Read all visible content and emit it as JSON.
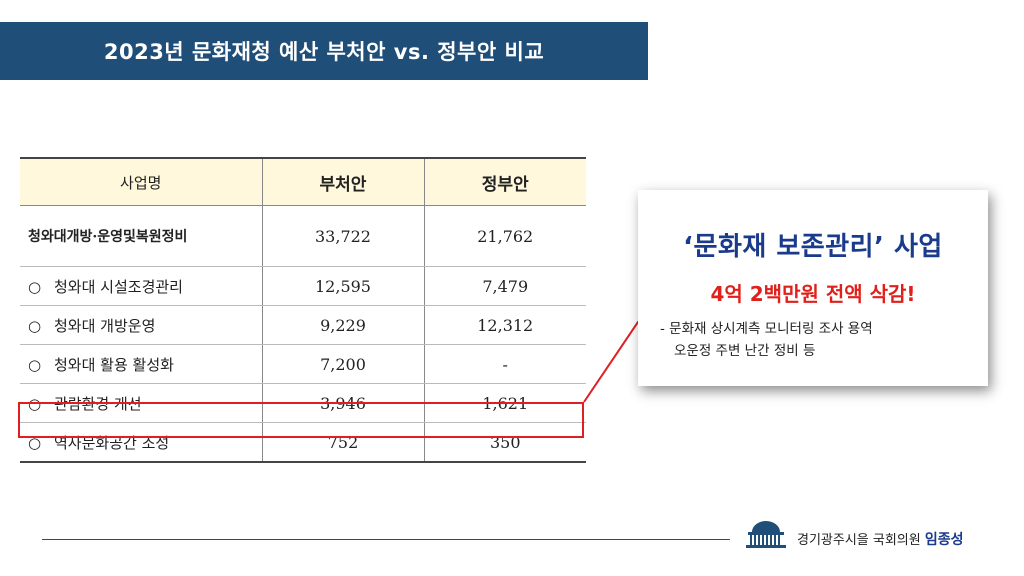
{
  "title": "2023년 문화재청 예산 부처안 vs. 정부안 비교",
  "table": {
    "headers": [
      "사업명",
      "부처안",
      "정부안"
    ],
    "rows": [
      {
        "bullet": "",
        "name": "청와대개방·운영및복원정비",
        "ministry": "33,722",
        "government": "21,762"
      },
      {
        "bullet": "○",
        "name": "청와대 시설조경관리",
        "ministry": "12,595",
        "government": "7,479"
      },
      {
        "bullet": "○",
        "name": "청와대 개방운영",
        "ministry": "9,229",
        "government": "12,312"
      },
      {
        "bullet": "○",
        "name": "청와대 활용 활성화",
        "ministry": "7,200",
        "government": "-"
      },
      {
        "bullet": "○",
        "name": "관람환경 개선",
        "ministry": "3,946",
        "government": "1,621"
      },
      {
        "bullet": "○",
        "name": "역사문화공간 조성",
        "ministry": "752",
        "government": "350"
      }
    ]
  },
  "callout": {
    "title": "‘문화재 보존관리’ 사업",
    "subtitle": "4억 2백만원 전액 삭감!",
    "detail_line1": "- 문화재 상시계측 모니터링 조사 용역",
    "detail_line2": "오운정 주변 난간 정비 등"
  },
  "footer": {
    "region": "경기광주시을 국회의원",
    "name": "임종성"
  },
  "colors": {
    "title_bar": "#1f4e79",
    "header_fill": "#fff8dc",
    "highlight": "#e02020",
    "callout_title": "#1a3a8c",
    "callout_subtitle": "#e0201a"
  },
  "icons": {
    "footer_logo": "national-assembly-icon"
  }
}
